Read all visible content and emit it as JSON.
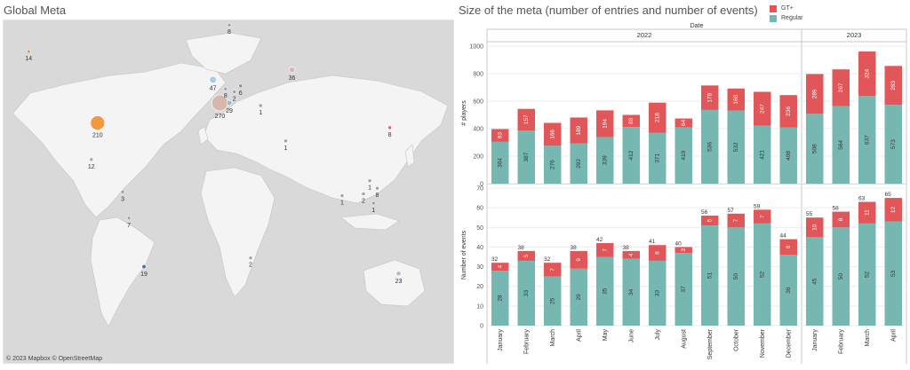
{
  "map": {
    "title": "Global Meta",
    "credit": "© 2023 Mapbox  © OpenStreetMap",
    "points": [
      {
        "label": "210",
        "value": 210,
        "lon": -95,
        "lat": 38,
        "color": "#f28e2b"
      },
      {
        "label": "270",
        "value": 270,
        "lon": 2.5,
        "lat": 46,
        "color": "#d4b2a5"
      },
      {
        "label": "47",
        "value": 47,
        "lon": -3,
        "lat": 54,
        "color": "#a0c4e8"
      },
      {
        "label": "29",
        "value": 29,
        "lon": 10,
        "lat": 46,
        "color": "#9bb3c9"
      },
      {
        "label": "36",
        "value": 36,
        "lon": 60,
        "lat": 57,
        "color": "#d8b0c0"
      },
      {
        "label": "6",
        "value": 6,
        "lon": 19,
        "lat": 52,
        "color": "#9a6fa0"
      },
      {
        "label": "19",
        "value": 19,
        "lon": -58,
        "lat": -34,
        "color": "#4e5fa2"
      },
      {
        "label": "23",
        "value": 23,
        "lon": 145,
        "lat": -37,
        "color": "#a9b8cc"
      },
      {
        "label": "14",
        "value": 14,
        "lon": -150,
        "lat": 62,
        "color": "#d4a03a"
      },
      {
        "label": "12",
        "value": 12,
        "lon": -100,
        "lat": 21,
        "color": "#9aa0aa"
      },
      {
        "label": "8",
        "value": 8,
        "lon": 7,
        "lat": 51,
        "color": "#8e9aaa"
      },
      {
        "label": "8",
        "value": 8,
        "lon": 10,
        "lat": 68,
        "color": "#8e9aaa"
      },
      {
        "label": "8",
        "value": 8,
        "lon": 138,
        "lat": 36,
        "color": "#d8526a"
      },
      {
        "label": "7",
        "value": 7,
        "lon": -70,
        "lat": -10,
        "color": "#8e9aaa"
      },
      {
        "label": "3",
        "value": 3,
        "lon": -75,
        "lat": 4,
        "color": "#8e9aaa"
      },
      {
        "label": "2",
        "value": 2,
        "lon": 14,
        "lat": 50,
        "color": "#8e9aaa"
      },
      {
        "label": "2",
        "value": 2,
        "lon": 117,
        "lat": 3,
        "color": "#8e9aaa"
      },
      {
        "label": "2",
        "value": 2,
        "lon": 27,
        "lat": -30,
        "color": "#8e9aaa"
      },
      {
        "label": "1",
        "value": 1,
        "lon": 35,
        "lat": 45,
        "color": "#8e9aaa"
      },
      {
        "label": "1",
        "value": 1,
        "lon": 55,
        "lat": 30,
        "color": "#8e9aaa"
      },
      {
        "label": "1",
        "value": 1,
        "lon": 122,
        "lat": 10,
        "color": "#8e9aaa"
      },
      {
        "label": "1",
        "value": 1,
        "lon": 125,
        "lat": -2,
        "color": "#8e9aaa"
      },
      {
        "label": "1",
        "value": 1,
        "lon": 100,
        "lat": 2,
        "color": "#8e9aaa"
      },
      {
        "label": "8",
        "value": 8,
        "lon": 128,
        "lat": 6,
        "color": "#8e9aaa"
      }
    ]
  },
  "chart_data": {
    "type": "bar",
    "title": "Size of the meta (number of entries and number of events)",
    "column_header": "Date",
    "years": [
      {
        "label": "2022",
        "count": 12
      },
      {
        "label": "2023",
        "count": 4
      }
    ],
    "categories": [
      "January",
      "February",
      "March",
      "April",
      "May",
      "June",
      "July",
      "August",
      "September",
      "October",
      "November",
      "December",
      "January",
      "February",
      "March",
      "April"
    ],
    "legend": [
      {
        "name": "GT+",
        "color": "#e15759"
      },
      {
        "name": "Regular",
        "color": "#76b7b2"
      }
    ],
    "panels": [
      {
        "ylabel": "# players",
        "ylim": [
          0,
          1000
        ],
        "ticks": [
          0,
          200,
          400,
          600,
          800,
          1000
        ],
        "show_totals": false,
        "series": [
          {
            "name": "Regular",
            "color": "#76b7b2",
            "values": [
              304,
              387,
              276,
              292,
              339,
              412,
              371,
              410,
              536,
              532,
              421,
              408,
              508,
              564,
              637,
              573
            ]
          },
          {
            "name": "GT+",
            "color": "#e15759",
            "values": [
              93,
              157,
              166,
              189,
              194,
              88,
              218,
              64,
              178,
              160,
              247,
              236,
              289,
              267,
              324,
              283
            ]
          }
        ]
      },
      {
        "ylabel": "Number of events",
        "ylim": [
          0,
          70
        ],
        "ticks": [
          0,
          10,
          20,
          30,
          40,
          50,
          60,
          70
        ],
        "show_totals": true,
        "series": [
          {
            "name": "Regular",
            "color": "#76b7b2",
            "values": [
              28,
              33,
              25,
              29,
              35,
              34,
              33,
              37,
              51,
              50,
              52,
              36,
              45,
              50,
              52,
              53
            ]
          },
          {
            "name": "GT+",
            "color": "#e15759",
            "values": [
              4,
              5,
              7,
              9,
              7,
              4,
              8,
              3,
              5,
              7,
              7,
              8,
              10,
              8,
              11,
              12
            ]
          }
        ]
      }
    ]
  }
}
